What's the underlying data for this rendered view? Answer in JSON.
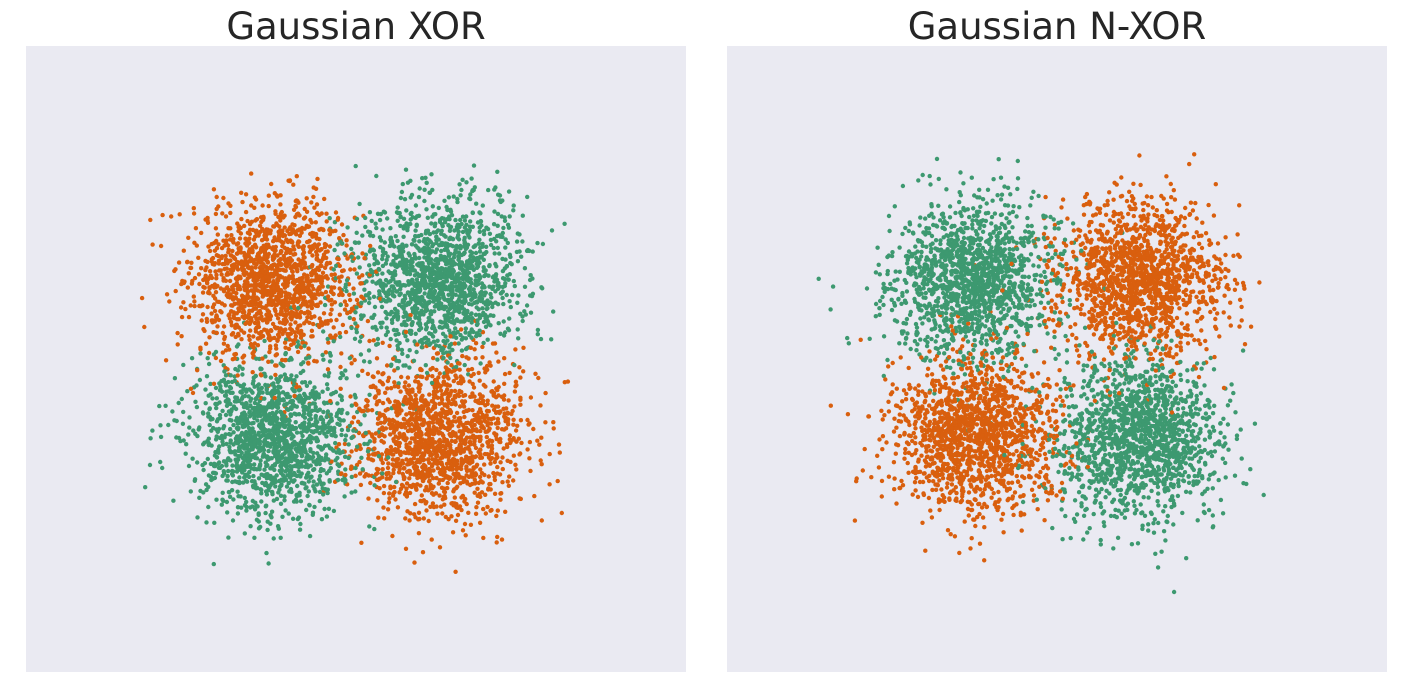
{
  "chart_data": [
    {
      "type": "scatter",
      "title": "Gaussian XOR",
      "xlabel": "",
      "ylabel": "",
      "xlim": [
        -4,
        4
      ],
      "ylim": [
        -4,
        4
      ],
      "grid": false,
      "legend": "none",
      "series": [
        {
          "color": "#d95f0e",
          "clusters": [
            {
              "center": [
                -1,
                1
              ],
              "std": [
                0.5,
                0.5
              ],
              "n": 1500
            },
            {
              "center": [
                1,
                -1
              ],
              "std": [
                0.5,
                0.5
              ],
              "n": 1500
            }
          ]
        },
        {
          "color": "#3d9970",
          "clusters": [
            {
              "center": [
                1,
                1
              ],
              "std": [
                0.5,
                0.5
              ],
              "n": 1500
            },
            {
              "center": [
                -1,
                -1
              ],
              "std": [
                0.5,
                0.5
              ],
              "n": 1500
            }
          ]
        }
      ]
    },
    {
      "type": "scatter",
      "title": "Gaussian N-XOR",
      "xlabel": "",
      "ylabel": "",
      "xlim": [
        -4,
        4
      ],
      "ylim": [
        -4,
        4
      ],
      "grid": false,
      "legend": "none",
      "series": [
        {
          "color": "#d95f0e",
          "clusters": [
            {
              "center": [
                1,
                1
              ],
              "std": [
                0.5,
                0.5
              ],
              "n": 1500
            },
            {
              "center": [
                -1,
                -1
              ],
              "std": [
                0.5,
                0.5
              ],
              "n": 1500
            }
          ]
        },
        {
          "color": "#3d9970",
          "clusters": [
            {
              "center": [
                -1,
                1
              ],
              "std": [
                0.5,
                0.5
              ],
              "n": 1500
            },
            {
              "center": [
                1,
                -1
              ],
              "std": [
                0.5,
                0.5
              ],
              "n": 1500
            }
          ]
        }
      ]
    }
  ]
}
